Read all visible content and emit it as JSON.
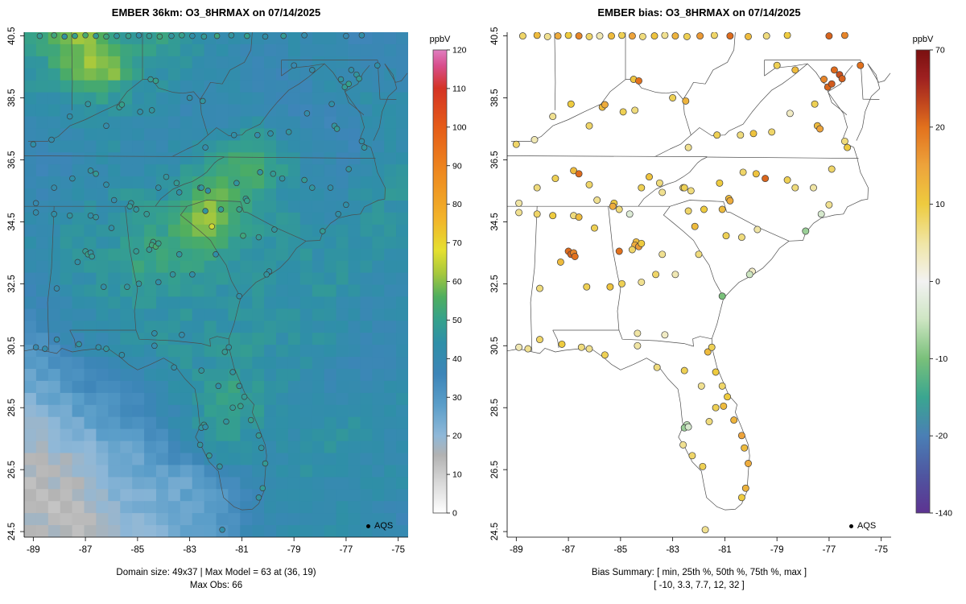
{
  "panels": [
    {
      "title": "EMBER 36km: O3_8HRMAX on 07/14/2025",
      "legend_label": "AQS",
      "captions": [
        "Domain size: 49x37 | Max Model = 63 at (36, 19)",
        "Max Obs: 66"
      ]
    },
    {
      "title": "EMBER bias: O3_8HRMAX on 07/14/2025",
      "legend_label": "AQS",
      "captions": [
        "Bias Summary: [ min, 25th %, 50th %, 75th %, max ]",
        "[ -10,  3.3,  7.7,  12,  32 ]"
      ]
    }
  ],
  "chart_data": [
    {
      "type": "heatmap",
      "title": "EMBER 36km: O3_8HRMAX on 07/14/2025",
      "units": "ppbV",
      "lon_range": [
        -89.35,
        -74.62
      ],
      "lat_range": [
        24.32,
        40.62
      ],
      "x_ticks": [
        -89,
        -87,
        -85,
        -83,
        -81,
        -79,
        -77,
        -75
      ],
      "y_ticks": [
        24.5,
        26.5,
        28.5,
        30.5,
        32.5,
        34.5,
        36.5,
        38.5,
        40.5
      ],
      "domain_size": "49x37",
      "max_model": {
        "value": 63,
        "grid_cell": [
          36,
          19
        ]
      },
      "max_obs": 66,
      "colorbar": {
        "label": "ppbV",
        "range": [
          0,
          120
        ],
        "ticks": [
          0,
          10,
          20,
          30,
          40,
          50,
          60,
          70,
          80,
          90,
          100,
          110,
          120
        ],
        "stops": [
          [
            0,
            "#ffffff"
          ],
          [
            8,
            "#d8d8d8"
          ],
          [
            15,
            "#b2b2b2"
          ],
          [
            20,
            "#8fb8d8"
          ],
          [
            28,
            "#5b9ec9"
          ],
          [
            36,
            "#3d85b8"
          ],
          [
            44,
            "#2f8fa8"
          ],
          [
            50,
            "#35a18c"
          ],
          [
            56,
            "#4fae5f"
          ],
          [
            62,
            "#a6c83d"
          ],
          [
            68,
            "#e5e030"
          ],
          [
            76,
            "#f2b52a"
          ],
          [
            88,
            "#ee8a1f"
          ],
          [
            100,
            "#e55c18"
          ],
          [
            110,
            "#d43324"
          ],
          [
            116,
            "#d84f8e"
          ],
          [
            120,
            "#e07ec0"
          ]
        ]
      },
      "raster": {
        "note": "approximate 16x21 downsample of the 49x37 O3 8-hr max field, ppbV",
        "ncols": 16,
        "nrows": 21,
        "rows": [
          "50 56 62 54 48 50 46 44 42 40 40 42 40 38 36 40",
          "46 52 60 64 52 46 44 42 40 40 38 40 42 40 38 40",
          "44 46 52 50 46 44 42 40 42 40 38 36 40 46 42 40",
          "40 42 44 46 44 42 40 38 40 44 40 38 36 40 42 44",
          "38 40 42 44 42 40 42 44 46 50 44 40 38 36 40 42",
          "36 38 40 42 40 42 44 48 52 58 50 44 40 38 42 44",
          "38 40 42 44 46 44 48 52 56 52 46 42 40 42 44 46",
          "40 42 44 42 46 48 52 63 56 50 46 44 42 44 46 44",
          "42 44 46 44 48 50 54 58 52 48 46 44 42 44 46 44",
          "40 44 46 48 50 52 50 52 48 46 44 46 44 46 44 42",
          "38 42 44 46 48 50 48 46 44 46 44 44 46 44 42 40",
          "36 40 42 44 46 44 46 44 46 44 46 44 44 42 40 42",
          "34 38 40 42 44 46 44 46 44 46 44 46 44 42 40 38",
          "30 34 38 40 44 42 46 44 48 46 44 44 42 40 38 40",
          "26 30 34 36 38 42 44 46 50 46 44 42 40 38 40 42",
          "22 26 30 32 34 38 42 48 52 48 44 42 40 42 44 44",
          "18 22 24 28 30 34 40 46 50 46 44 42 44 46 44 42",
          "16 18 20 24 26 30 36 42 46 44 42 44 46 44 42 40",
          "14 16 18 22 24 26 26 28 34 40 44 44 42 40 42 44",
          "14 14 16 20 22 24 26 28 32 38 42 40 42 44 42 40",
          "16 14 14 18 20 22 26 28 32 38 40 42 44 42 40 38"
        ]
      }
    },
    {
      "type": "scatter",
      "title": "EMBER bias: O3_8HRMAX on 07/14/2025",
      "units": "ppbV",
      "x_ticks": [
        -89,
        -87,
        -85,
        -83,
        -81,
        -79,
        -77,
        -75
      ],
      "y_ticks": [
        24.5,
        26.5,
        28.5,
        30.5,
        32.5,
        34.5,
        36.5,
        38.5,
        40.5
      ],
      "bias_summary": {
        "min": -10,
        "p25": 3.3,
        "median": 7.7,
        "p75": 12,
        "max": 32
      },
      "colorbar": {
        "label": "ppbV",
        "ticks": [
          70,
          20,
          10,
          0,
          -10,
          -20,
          -140
        ],
        "stops_t": [
          [
            0,
            "#7a1010"
          ],
          [
            0.06,
            "#9e2020"
          ],
          [
            0.12,
            "#c44a1e"
          ],
          [
            0.167,
            "#e2711d"
          ],
          [
            0.25,
            "#eda33b"
          ],
          [
            0.333,
            "#eecb3f"
          ],
          [
            0.42,
            "#f0e6a8"
          ],
          [
            0.5,
            "#f2f2f2"
          ],
          [
            0.58,
            "#cfe6c4"
          ],
          [
            0.667,
            "#79c07a"
          ],
          [
            0.75,
            "#3aa690"
          ],
          [
            0.833,
            "#4a7fb5"
          ],
          [
            0.92,
            "#4f55a0"
          ],
          [
            1,
            "#5d3391"
          ]
        ]
      }
    }
  ],
  "stations_schema": [
    "lon",
    "lat",
    "obs_ppbv",
    "bias_ppbv"
  ],
  "stations": [
    [
      -88.75,
      40.5,
      48,
      8
    ],
    [
      -88.2,
      40.52,
      52,
      12
    ],
    [
      -87.8,
      40.48,
      46,
      6
    ],
    [
      -87.4,
      40.5,
      50,
      14
    ],
    [
      -87.0,
      40.52,
      54,
      10
    ],
    [
      -86.6,
      40.5,
      48,
      18
    ],
    [
      -86.2,
      40.48,
      52,
      8
    ],
    [
      -85.8,
      40.5,
      46,
      4
    ],
    [
      -85.35,
      40.5,
      50,
      12
    ],
    [
      -84.95,
      40.52,
      44,
      9
    ],
    [
      -84.55,
      40.5,
      48,
      15
    ],
    [
      -84.15,
      40.48,
      52,
      7
    ],
    [
      -83.7,
      40.5,
      46,
      11
    ],
    [
      -83.3,
      40.52,
      50,
      6
    ],
    [
      -82.9,
      40.5,
      44,
      13
    ],
    [
      -82.45,
      40.48,
      48,
      9
    ],
    [
      -81.95,
      40.5,
      52,
      16
    ],
    [
      -81.4,
      40.52,
      46,
      8
    ],
    [
      -80.8,
      40.5,
      50,
      22
    ],
    [
      -80.1,
      40.48,
      44,
      12
    ],
    [
      -79.4,
      40.5,
      48,
      7
    ],
    [
      -78.6,
      40.52,
      42,
      10
    ],
    [
      -77.0,
      40.5,
      40,
      25
    ],
    [
      -76.4,
      40.52,
      44,
      18
    ],
    [
      -89.0,
      37.0,
      44,
      8
    ],
    [
      -88.3,
      37.15,
      42,
      4
    ],
    [
      -87.6,
      37.9,
      44,
      6
    ],
    [
      -86.9,
      38.3,
      46,
      10
    ],
    [
      -86.2,
      37.6,
      42,
      8
    ],
    [
      -85.7,
      38.2,
      48,
      12
    ],
    [
      -85.6,
      38.28,
      50,
      14
    ],
    [
      -84.9,
      38.05,
      44,
      9
    ],
    [
      -84.45,
      38.1,
      46,
      7
    ],
    [
      -84.5,
      39.1,
      48,
      11
    ],
    [
      -84.3,
      39.05,
      50,
      20
    ],
    [
      -83.0,
      38.5,
      44,
      9
    ],
    [
      -82.5,
      38.4,
      46,
      13
    ],
    [
      -88.9,
      35.1,
      40,
      5
    ],
    [
      -88.2,
      35.6,
      42,
      7
    ],
    [
      -87.5,
      35.9,
      44,
      9
    ],
    [
      -86.8,
      36.15,
      46,
      12
    ],
    [
      -86.6,
      36.05,
      48,
      22
    ],
    [
      -86.2,
      35.7,
      44,
      8
    ],
    [
      -85.9,
      35.2,
      42,
      6
    ],
    [
      -85.25,
      35.1,
      46,
      10
    ],
    [
      -85.3,
      35.0,
      48,
      14
    ],
    [
      -84.2,
      35.6,
      44,
      9
    ],
    [
      -83.9,
      35.95,
      46,
      11
    ],
    [
      -83.5,
      35.75,
      48,
      7
    ],
    [
      -82.6,
      35.6,
      46,
      8
    ],
    [
      -82.4,
      36.9,
      42,
      6
    ],
    [
      -81.3,
      37.3,
      44,
      9
    ],
    [
      -80.4,
      37.3,
      42,
      7
    ],
    [
      -79.9,
      37.35,
      44,
      11
    ],
    [
      -79.2,
      37.4,
      46,
      8
    ],
    [
      -78.5,
      38.0,
      42,
      3
    ],
    [
      -77.55,
      38.3,
      44,
      9
    ],
    [
      -77.45,
      37.6,
      46,
      12
    ],
    [
      -77.35,
      37.5,
      48,
      15
    ],
    [
      -76.4,
      37.1,
      44,
      7
    ],
    [
      -76.3,
      36.9,
      46,
      10
    ],
    [
      -77.05,
      38.85,
      48,
      24
    ],
    [
      -76.9,
      38.95,
      50,
      28
    ],
    [
      -76.6,
      39.25,
      46,
      32
    ],
    [
      -76.5,
      39.12,
      48,
      26
    ],
    [
      -76.8,
      39.4,
      44,
      22
    ],
    [
      -77.2,
      39.1,
      46,
      18
    ],
    [
      -78.3,
      39.4,
      42,
      12
    ],
    [
      -79.0,
      39.55,
      40,
      9
    ],
    [
      -75.8,
      39.55,
      44,
      20
    ],
    [
      -83.4,
      35.45,
      44,
      6
    ],
    [
      -82.55,
      35.6,
      46,
      9
    ],
    [
      -82.3,
      35.5,
      44,
      7
    ],
    [
      -81.2,
      35.75,
      46,
      10
    ],
    [
      -80.85,
      35.25,
      48,
      12
    ],
    [
      -80.8,
      35.18,
      50,
      14
    ],
    [
      -80.3,
      36.1,
      46,
      8
    ],
    [
      -79.8,
      36.05,
      48,
      11
    ],
    [
      -79.45,
      35.9,
      46,
      24
    ],
    [
      -78.6,
      35.85,
      48,
      9
    ],
    [
      -78.3,
      35.6,
      46,
      7
    ],
    [
      -77.6,
      35.6,
      44,
      5
    ],
    [
      -76.9,
      36.2,
      46,
      8
    ],
    [
      -77.0,
      35.05,
      44,
      6
    ],
    [
      -77.9,
      34.2,
      48,
      -8
    ],
    [
      -77.3,
      34.75,
      44,
      -4
    ],
    [
      -82.4,
      34.85,
      46,
      8
    ],
    [
      -81.8,
      34.9,
      48,
      10
    ],
    [
      -82.15,
      34.35,
      66,
      12
    ],
    [
      -81.1,
      34.9,
      50,
      12
    ],
    [
      -80.95,
      34.05,
      52,
      9
    ],
    [
      -80.35,
      34.0,
      48,
      7
    ],
    [
      -79.75,
      34.25,
      46,
      5
    ],
    [
      -79.95,
      32.9,
      44,
      3
    ],
    [
      -80.05,
      32.8,
      46,
      -5
    ],
    [
      -85.05,
      34.9,
      46,
      7
    ],
    [
      -84.65,
      34.75,
      48,
      -3
    ],
    [
      -84.4,
      33.85,
      50,
      12
    ],
    [
      -84.45,
      33.75,
      52,
      14
    ],
    [
      -84.3,
      33.7,
      54,
      16
    ],
    [
      -84.2,
      33.8,
      50,
      10
    ],
    [
      -84.55,
      33.6,
      48,
      8
    ],
    [
      -83.4,
      33.45,
      46,
      6
    ],
    [
      -82.9,
      32.8,
      44,
      4
    ],
    [
      -83.65,
      32.8,
      46,
      8
    ],
    [
      -84.2,
      32.55,
      44,
      6
    ],
    [
      -84.95,
      32.5,
      46,
      9
    ],
    [
      -85.05,
      33.55,
      48,
      20
    ],
    [
      -82.0,
      33.45,
      44,
      7
    ],
    [
      -81.1,
      32.1,
      44,
      -10
    ],
    [
      -84.35,
      30.9,
      44,
      5
    ],
    [
      -83.3,
      30.85,
      42,
      3
    ],
    [
      -88.9,
      34.8,
      42,
      6
    ],
    [
      -88.2,
      34.75,
      44,
      8
    ],
    [
      -87.6,
      34.7,
      46,
      10
    ],
    [
      -86.8,
      34.7,
      44,
      7
    ],
    [
      -86.6,
      34.65,
      46,
      12
    ],
    [
      -86.0,
      34.3,
      44,
      9
    ],
    [
      -87.0,
      33.55,
      48,
      22
    ],
    [
      -86.9,
      33.45,
      50,
      25
    ],
    [
      -86.8,
      33.5,
      46,
      18
    ],
    [
      -86.75,
      33.38,
      48,
      20
    ],
    [
      -87.3,
      33.2,
      44,
      12
    ],
    [
      -88.1,
      32.35,
      42,
      7
    ],
    [
      -86.3,
      32.4,
      44,
      9
    ],
    [
      -85.4,
      32.4,
      46,
      11
    ],
    [
      -88.9,
      30.45,
      40,
      4
    ],
    [
      -88.55,
      30.4,
      42,
      6
    ],
    [
      -88.1,
      30.7,
      44,
      8
    ],
    [
      -87.25,
      30.55,
      46,
      10
    ],
    [
      -86.5,
      30.45,
      44,
      7
    ],
    [
      -86.2,
      30.4,
      46,
      6
    ],
    [
      -85.6,
      30.2,
      44,
      9
    ],
    [
      -84.35,
      30.5,
      42,
      5
    ],
    [
      -83.6,
      29.8,
      44,
      7
    ],
    [
      -82.55,
      29.7,
      46,
      9
    ],
    [
      -81.9,
      29.2,
      44,
      6
    ],
    [
      -81.35,
      29.65,
      46,
      10
    ],
    [
      -81.65,
      30.3,
      48,
      12
    ],
    [
      -81.5,
      30.45,
      46,
      9
    ],
    [
      -81.1,
      29.2,
      46,
      8
    ],
    [
      -80.9,
      28.85,
      48,
      10
    ],
    [
      -81.05,
      28.55,
      50,
      12
    ],
    [
      -81.35,
      28.5,
      48,
      9
    ],
    [
      -81.6,
      28.05,
      46,
      7
    ],
    [
      -82.45,
      27.95,
      48,
      -6
    ],
    [
      -82.55,
      27.85,
      46,
      -8
    ],
    [
      -82.4,
      27.88,
      44,
      -4
    ],
    [
      -82.6,
      27.3,
      46,
      6
    ],
    [
      -82.25,
      26.95,
      48,
      8
    ],
    [
      -81.85,
      26.6,
      46,
      9
    ],
    [
      -80.65,
      28.1,
      50,
      13
    ],
    [
      -80.35,
      27.6,
      48,
      15
    ],
    [
      -80.25,
      27.2,
      46,
      12
    ],
    [
      -80.1,
      26.7,
      48,
      14
    ],
    [
      -80.2,
      25.9,
      48,
      13
    ],
    [
      -80.35,
      25.6,
      46,
      10
    ],
    [
      -81.75,
      24.56,
      44,
      6
    ]
  ]
}
